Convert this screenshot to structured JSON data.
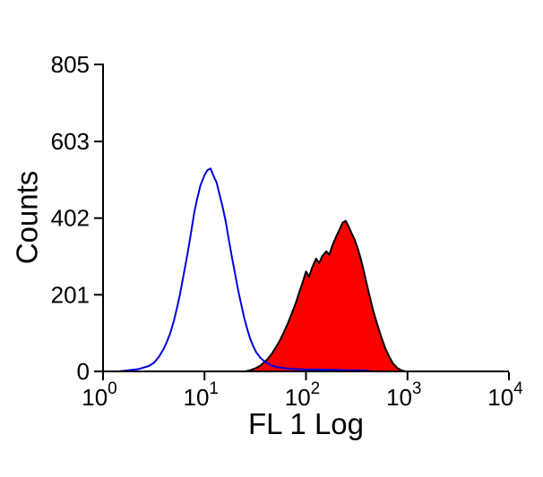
{
  "figure": {
    "background": "#ffffff",
    "title": ""
  },
  "chart_data": {
    "type": "area",
    "subtype": "flow-cytometry-histogram-overlay",
    "title": "",
    "xlabel": "FL 1 Log",
    "ylabel": "Counts",
    "x_scale": "log10",
    "xlim": [
      1,
      10000
    ],
    "ylim": [
      0,
      805
    ],
    "y_ticks": [
      0,
      201,
      402,
      603,
      805
    ],
    "x_ticks": [
      1,
      10,
      100,
      1000,
      10000
    ],
    "x_tick_base": "10",
    "x_tick_exponents": [
      0,
      1,
      2,
      3,
      4
    ],
    "grid": "off",
    "legend": "none",
    "axis_color": "#000000",
    "series": [
      {
        "name": "red-filled-histogram",
        "style": "filled",
        "stroke": "#000000",
        "fill": "#fb0000",
        "points_are": "log10x_vs_counts",
        "points": [
          [
            1.4,
            0
          ],
          [
            1.45,
            3
          ],
          [
            1.5,
            8
          ],
          [
            1.55,
            15
          ],
          [
            1.58,
            22
          ],
          [
            1.62,
            32
          ],
          [
            1.66,
            45
          ],
          [
            1.7,
            62
          ],
          [
            1.74,
            80
          ],
          [
            1.78,
            102
          ],
          [
            1.82,
            125
          ],
          [
            1.86,
            152
          ],
          [
            1.9,
            180
          ],
          [
            1.93,
            205
          ],
          [
            1.96,
            228
          ],
          [
            2.0,
            262
          ],
          [
            2.03,
            248
          ],
          [
            2.06,
            272
          ],
          [
            2.1,
            296
          ],
          [
            2.13,
            284
          ],
          [
            2.16,
            302
          ],
          [
            2.2,
            315
          ],
          [
            2.23,
            306
          ],
          [
            2.26,
            330
          ],
          [
            2.3,
            355
          ],
          [
            2.33,
            372
          ],
          [
            2.36,
            390
          ],
          [
            2.39,
            395
          ],
          [
            2.42,
            380
          ],
          [
            2.45,
            362
          ],
          [
            2.48,
            345
          ],
          [
            2.51,
            322
          ],
          [
            2.54,
            295
          ],
          [
            2.57,
            262
          ],
          [
            2.6,
            228
          ],
          [
            2.63,
            195
          ],
          [
            2.66,
            162
          ],
          [
            2.7,
            125
          ],
          [
            2.74,
            92
          ],
          [
            2.78,
            62
          ],
          [
            2.82,
            38
          ],
          [
            2.86,
            20
          ],
          [
            2.9,
            9
          ],
          [
            2.94,
            3
          ],
          [
            2.98,
            0
          ]
        ]
      },
      {
        "name": "blue-open-histogram",
        "style": "open",
        "stroke": "#0000e0",
        "fill": "none",
        "points_are": "log10x_vs_counts",
        "points": [
          [
            0.15,
            0
          ],
          [
            0.25,
            3
          ],
          [
            0.35,
            6
          ],
          [
            0.45,
            14
          ],
          [
            0.5,
            22
          ],
          [
            0.55,
            38
          ],
          [
            0.6,
            60
          ],
          [
            0.63,
            78
          ],
          [
            0.66,
            98
          ],
          [
            0.7,
            135
          ],
          [
            0.73,
            168
          ],
          [
            0.76,
            205
          ],
          [
            0.8,
            262
          ],
          [
            0.83,
            305
          ],
          [
            0.86,
            352
          ],
          [
            0.9,
            418
          ],
          [
            0.93,
            455
          ],
          [
            0.96,
            488
          ],
          [
            1.0,
            515
          ],
          [
            1.03,
            528
          ],
          [
            1.06,
            532
          ],
          [
            1.09,
            512
          ],
          [
            1.12,
            495
          ],
          [
            1.15,
            462
          ],
          [
            1.18,
            430
          ],
          [
            1.21,
            392
          ],
          [
            1.24,
            345
          ],
          [
            1.27,
            300
          ],
          [
            1.3,
            258
          ],
          [
            1.33,
            215
          ],
          [
            1.36,
            178
          ],
          [
            1.39,
            142
          ],
          [
            1.42,
            112
          ],
          [
            1.45,
            86
          ],
          [
            1.48,
            66
          ],
          [
            1.51,
            50
          ],
          [
            1.55,
            36
          ],
          [
            1.6,
            24
          ],
          [
            1.65,
            17
          ],
          [
            1.7,
            12
          ],
          [
            1.8,
            8
          ],
          [
            1.9,
            6
          ],
          [
            2.0,
            5
          ],
          [
            2.1,
            5
          ],
          [
            2.2,
            4
          ],
          [
            2.3,
            4
          ],
          [
            2.4,
            3
          ],
          [
            2.5,
            3
          ],
          [
            2.6,
            2
          ],
          [
            2.65,
            0
          ]
        ]
      }
    ]
  }
}
